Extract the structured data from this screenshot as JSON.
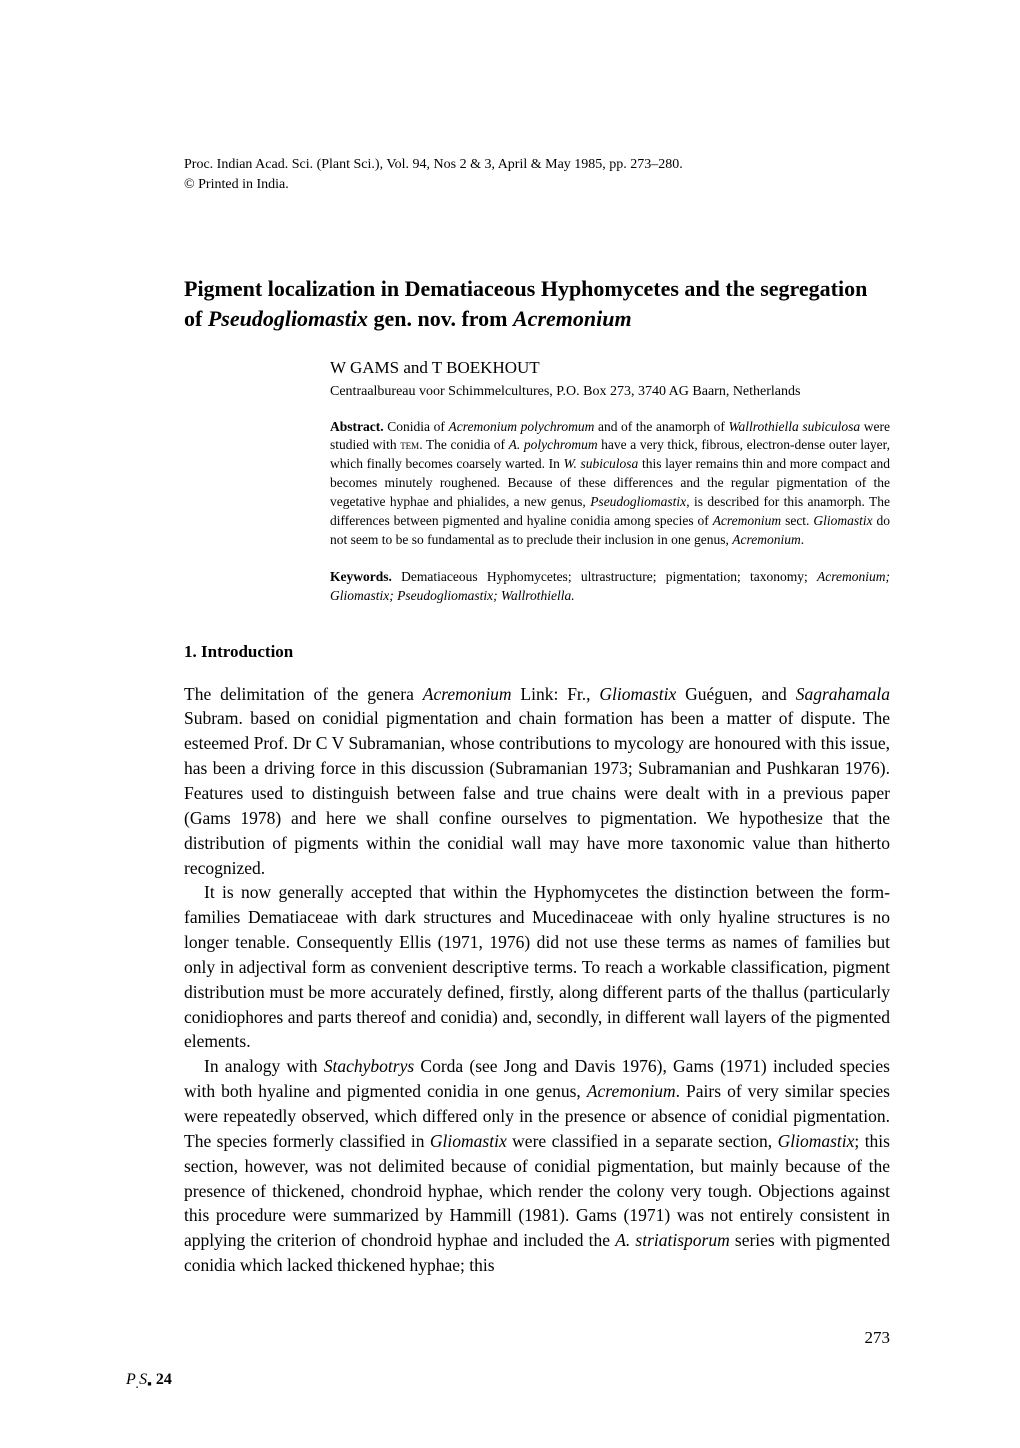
{
  "citation": {
    "line1": "Proc. Indian Acad. Sci. (Plant Sci.), Vol. 94, Nos 2 & 3, April & May 1985, pp. 273–280.",
    "line2": "© Printed in India."
  },
  "title": {
    "part1": "Pigment localization in Dematiaceous Hyphomycetes and the segregation of ",
    "italic1": "Pseudogliomastix",
    "part2": " gen. nov. from ",
    "italic2": "Acremonium"
  },
  "authors": "W GAMS and T BOEKHOUT",
  "affiliation": "Centraalbureau voor Schimmelcultures, P.O. Box 273, 3740 AG Baarn, Netherlands",
  "abstract": {
    "label": "Abstract.",
    "p1a": " Conidia of ",
    "p1_i1": "Acremonium polychromum",
    "p1b": " and of the anamorph of ",
    "p1_i2": "Wallrothiella subiculosa",
    "p1c": " were studied with ",
    "p1_sc": "tem",
    "p1d": ". The conidia of ",
    "p1_i3": "A. polychromum",
    "p1e": " have a very thick, fibrous, electron-dense outer layer, which finally becomes coarsely warted. In ",
    "p1_i4": "W. subiculosa",
    "p1f": " this layer remains thin and more compact and becomes minutely roughened. Because of these differences and the regular pigmentation of the vegetative hyphae and phialides, a new genus, ",
    "p1_i5": "Pseudogliomastix",
    "p1g": ", is described for this anamorph. The differences between pigmented and hyaline conidia among species of ",
    "p1_i6": "Acremonium",
    "p1h": " sect. ",
    "p1_i7": "Gliomastix",
    "p1i": " do not seem to be so fundamental as to preclude their inclusion in one genus, ",
    "p1_i8": "Acremonium",
    "p1j": "."
  },
  "keywords": {
    "label": "Keywords.",
    "text": " Dematiaceous Hyphomycetes; ultrastructure; pigmentation; taxonomy; ",
    "italic": "Acremonium; Gliomastix; Pseudogliomastix; Wallrothiella."
  },
  "section1": {
    "heading": "1.   Introduction",
    "p1a": "The delimitation of the genera ",
    "p1_i1": "Acremonium",
    "p1b": " Link: Fr., ",
    "p1_i2": "Gliomastix",
    "p1c": " Guéguen, and ",
    "p1_i3": "Sagrahamala",
    "p1d": " Subram. based on conidial pigmentation and chain formation has been a matter of dispute. The esteemed Prof. Dr C V Subramanian, whose contributions to mycology are honoured with this issue, has been a driving force in this discussion (Subramanian 1973; Subramanian and Pushkaran 1976). Features used to distinguish between false and true chains were dealt with in a previous paper (Gams 1978) and here we shall confine ourselves to pigmentation. We hypothesize that the distribution of pigments within the conidial wall may have more taxonomic value than hitherto recognized.",
    "p2": "It is now generally accepted that within the Hyphomycetes the distinction between the form-families Dematiaceae with dark structures and Mucedinaceae with only hyaline structures is no longer tenable. Consequently Ellis (1971, 1976) did not use these terms as names of families but only in adjectival form as convenient descriptive terms. To reach a workable classification, pigment distribution must be more accurately defined, firstly, along different parts of the thallus (particularly conidiophores and parts thereof and conidia) and, secondly, in different wall layers of the pigmented elements.",
    "p3a": "In analogy with ",
    "p3_i1": "Stachybotrys",
    "p3b": " Corda (see Jong and Davis 1976), Gams (1971) included species with both hyaline and pigmented conidia in one genus, ",
    "p3_i2": "Acremonium",
    "p3c": ". Pairs of very similar species were repeatedly observed, which differed only in the presence or absence of conidial pigmentation. The species formerly classified in ",
    "p3_i3": "Gliomastix",
    "p3d": " were classified in a separate section, ",
    "p3_i4": "Gliomastix",
    "p3e": "; this section, however, was not delimited because of conidial pigmentation, but mainly because of the presence of thickened, chondroid hyphae, which render the colony very tough. Objections against this procedure were summarized by Hammill (1981). Gams (1971) was not entirely consistent in applying the criterion of chondroid hyphae and included the ",
    "p3_i5": "A. striatisporum",
    "p3f": " series with pigmented conidia which lacked thickened hyphae; this"
  },
  "page_number": "273",
  "footer": {
    "prefix": "P",
    "sub": ".",
    "mid": "S",
    "sub2": "▪",
    "num": "  24"
  }
}
